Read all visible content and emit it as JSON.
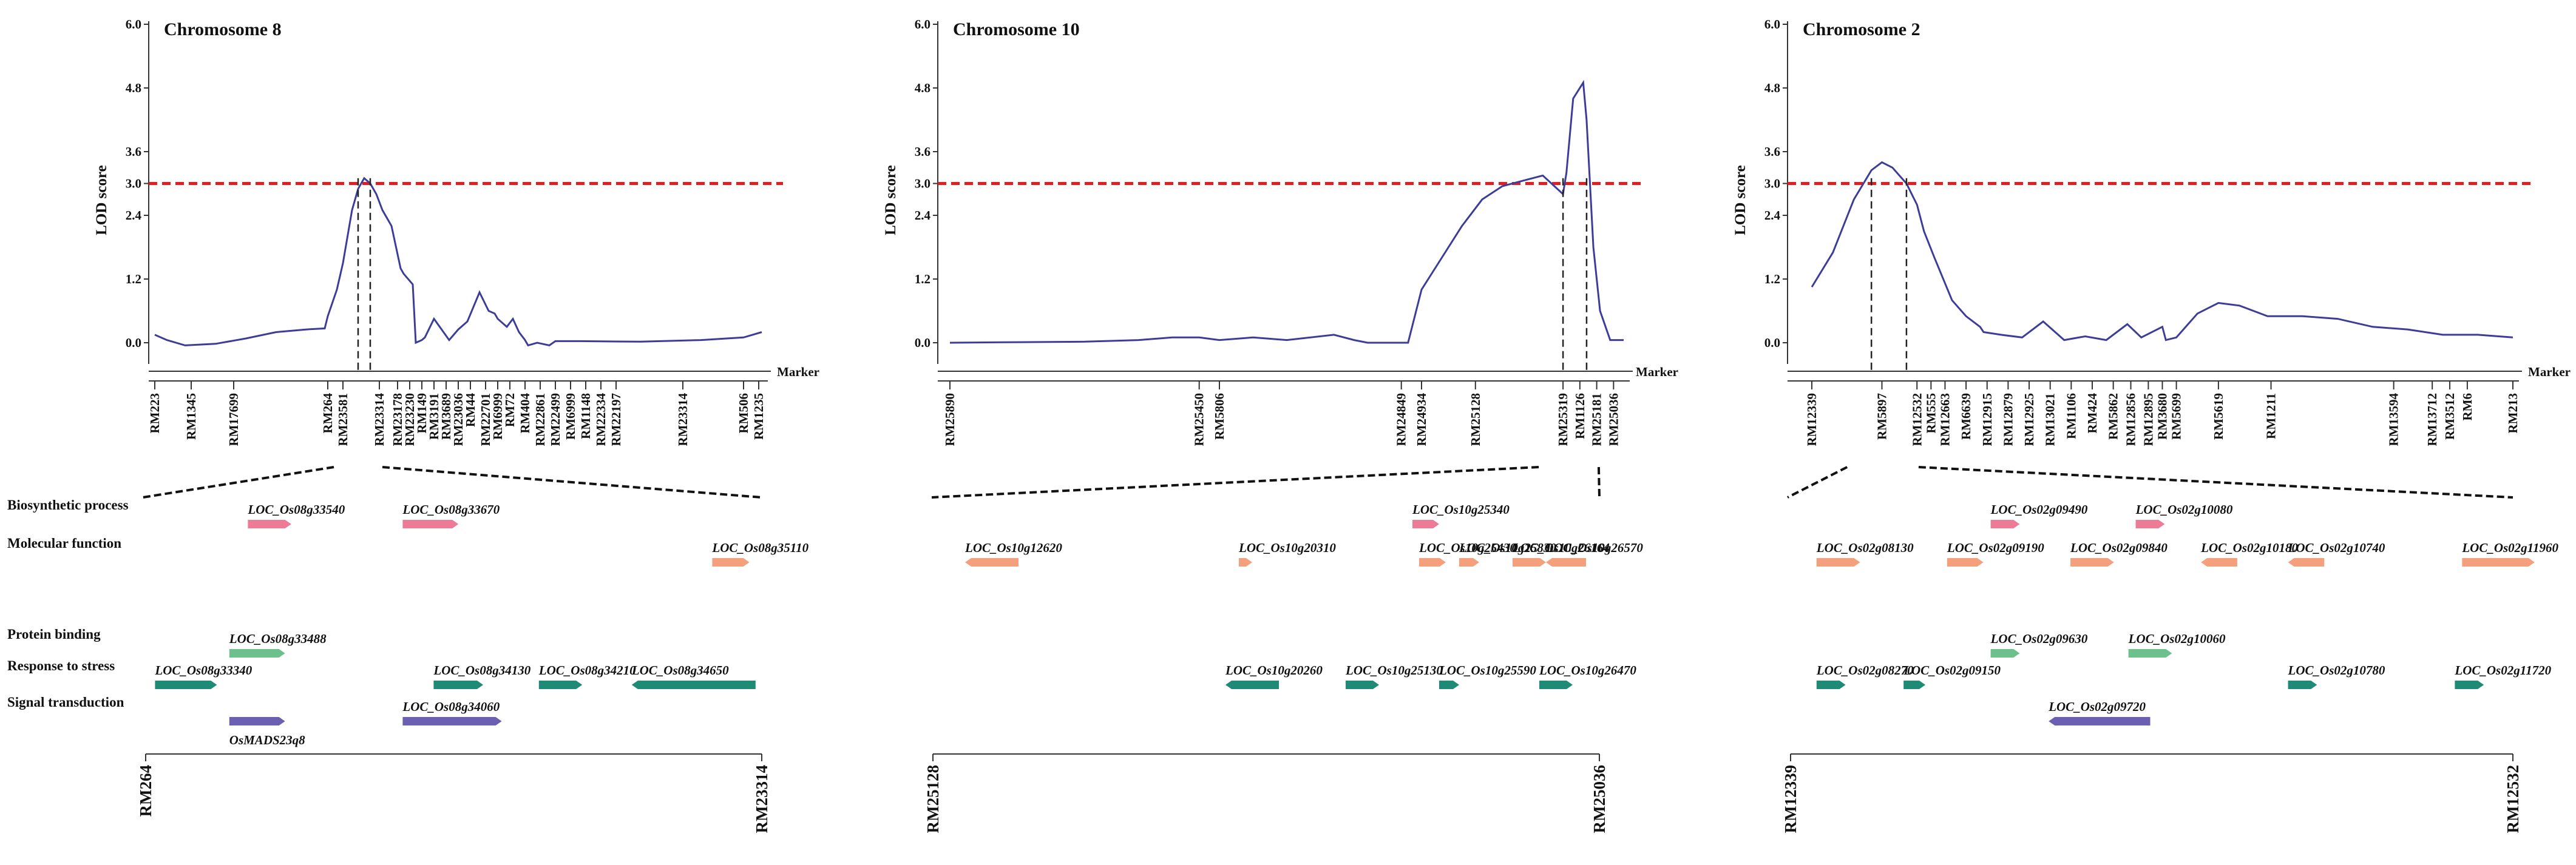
{
  "chart_data": [
    {
      "type": "line",
      "title": "Chromosome 8",
      "ylabel": "LOD score",
      "xlabel": "Marker",
      "yticks": [
        "0.0",
        "1.2",
        "2.4",
        "3.0",
        "3.6",
        "4.8",
        "6.0"
      ],
      "ylim": [
        0,
        6
      ],
      "threshold": 3.0,
      "x": [
        0,
        0.02,
        0.05,
        0.1,
        0.15,
        0.2,
        0.25,
        0.28,
        0.285,
        0.3,
        0.31,
        0.325,
        0.335,
        0.345,
        0.355,
        0.365,
        0.375,
        0.385,
        0.39,
        0.405,
        0.41,
        0.425,
        0.43,
        0.44,
        0.445,
        0.46,
        0.485,
        0.5,
        0.515,
        0.535,
        0.55,
        0.56,
        0.565,
        0.58,
        0.59,
        0.6,
        0.61,
        0.615,
        0.63,
        0.65,
        0.66,
        0.7,
        0.8,
        0.9,
        0.97,
        1.0
      ],
      "y": [
        0.15,
        0.05,
        -0.05,
        -0.02,
        0.08,
        0.2,
        0.25,
        0.27,
        0.5,
        1.0,
        1.5,
        2.5,
        2.9,
        3.1,
        3.0,
        2.8,
        2.5,
        2.3,
        2.2,
        1.4,
        1.3,
        1.1,
        0.0,
        0.05,
        0.1,
        0.45,
        0.05,
        0.25,
        0.4,
        0.95,
        0.6,
        0.55,
        0.45,
        0.3,
        0.45,
        0.2,
        0.05,
        -0.05,
        0.0,
        -0.05,
        0.03,
        0.03,
        0.02,
        0.05,
        0.1,
        0.2
      ],
      "qtl": [
        0.335,
        0.355
      ],
      "markers": [
        {
          "name": "RM223",
          "pos": 0.0
        },
        {
          "name": "RM1345",
          "pos": 0.06
        },
        {
          "name": "RM17699",
          "pos": 0.13
        },
        {
          "name": "RM264",
          "pos": 0.285
        },
        {
          "name": "RM23581",
          "pos": 0.31
        },
        {
          "name": "RM23314",
          "pos": 0.37
        },
        {
          "name": "RM23178",
          "pos": 0.4
        },
        {
          "name": "RM23230",
          "pos": 0.42
        },
        {
          "name": "RM149",
          "pos": 0.44
        },
        {
          "name": "RM3191",
          "pos": 0.46
        },
        {
          "name": "RM3689",
          "pos": 0.48
        },
        {
          "name": "RM23036",
          "pos": 0.5
        },
        {
          "name": "RM44",
          "pos": 0.52
        },
        {
          "name": "RM22701",
          "pos": 0.545
        },
        {
          "name": "RM6999",
          "pos": 0.565
        },
        {
          "name": "RM72",
          "pos": 0.585
        },
        {
          "name": "RM404",
          "pos": 0.61
        },
        {
          "name": "RM22861",
          "pos": 0.635
        },
        {
          "name": "RM22499",
          "pos": 0.66
        },
        {
          "name": "RM6999",
          "pos": 0.685
        },
        {
          "name": "RM1148",
          "pos": 0.71
        },
        {
          "name": "RM22334",
          "pos": 0.735
        },
        {
          "name": "RM22197",
          "pos": 0.76
        },
        {
          "name": "RM23314",
          "pos": 0.87
        },
        {
          "name": "RM506",
          "pos": 0.97
        },
        {
          "name": "RM1235",
          "pos": 0.995
        }
      ],
      "genes": [
        {
          "name": "LOC_Os08g33540",
          "cat": "Biosynthetic process",
          "pos": 0.17,
          "dir": 1,
          "size": 0.07
        },
        {
          "name": "LOC_Os08g33670",
          "cat": "Biosynthetic process",
          "pos": 0.42,
          "dir": 1,
          "size": 0.09
        },
        {
          "name": "LOC_Os08g35110",
          "cat": "Molecular function",
          "pos": 0.92,
          "dir": 1,
          "size": 0.06
        },
        {
          "name": "LOC_Os08g33488",
          "cat": "Protein binding",
          "pos": 0.14,
          "dir": 1,
          "size": 0.09
        },
        {
          "name": "LOC_Os08g33340",
          "cat": "Response to stress",
          "pos": 0.02,
          "dir": 1,
          "size": 0.1
        },
        {
          "name": "LOC_Os08g34130",
          "cat": "Response to stress",
          "pos": 0.47,
          "dir": 1,
          "size": 0.08
        },
        {
          "name": "LOC_Os08g34210",
          "cat": "Response to stress",
          "pos": 0.64,
          "dir": 1,
          "size": 0.07
        },
        {
          "name": "LOC_Os08g34650",
          "cat": "Response to stress",
          "pos": 0.79,
          "dir": -1,
          "size": 0.2
        },
        {
          "name": "LOC_Os08g34060",
          "cat": "Signal transduction",
          "pos": 0.42,
          "dir": 1,
          "size": 0.16
        },
        {
          "name": "OsMADS23q8",
          "cat": "Signal transduction",
          "pos": 0.14,
          "dir": 1,
          "size": 0.09
        }
      ],
      "interval": [
        "RM264",
        "RM23314"
      ]
    },
    {
      "type": "line",
      "title": "Chromosome 10",
      "ylabel": "LOD score",
      "xlabel": "Marker",
      "yticks": [
        "0.0",
        "1.2",
        "2.4",
        "3.0",
        "3.6",
        "4.8",
        "6.0"
      ],
      "ylim": [
        0,
        6
      ],
      "threshold": 3.0,
      "x": [
        0,
        0.1,
        0.2,
        0.28,
        0.33,
        0.37,
        0.4,
        0.45,
        0.5,
        0.57,
        0.6,
        0.62,
        0.68,
        0.7,
        0.72,
        0.76,
        0.79,
        0.82,
        0.85,
        0.88,
        0.91,
        0.915,
        0.925,
        0.94,
        0.945,
        0.955,
        0.965,
        0.98,
        1.0
      ],
      "y": [
        0.0,
        0.01,
        0.02,
        0.05,
        0.1,
        0.1,
        0.05,
        0.1,
        0.05,
        0.15,
        0.05,
        0.0,
        0.0,
        1.0,
        1.4,
        2.2,
        2.7,
        2.95,
        3.05,
        3.15,
        2.8,
        3.2,
        4.6,
        4.9,
        4.2,
        1.8,
        0.6,
        0.05,
        0.05
      ],
      "qtl": [
        0.91,
        0.945
      ],
      "markers": [
        {
          "name": "RM25890",
          "pos": 0.0
        },
        {
          "name": "RM25450",
          "pos": 0.37
        },
        {
          "name": "RM5806",
          "pos": 0.4
        },
        {
          "name": "RM24849",
          "pos": 0.67
        },
        {
          "name": "RM24934",
          "pos": 0.7
        },
        {
          "name": "RM25128",
          "pos": 0.78
        },
        {
          "name": "RM25319",
          "pos": 0.91
        },
        {
          "name": "RM1126",
          "pos": 0.935
        },
        {
          "name": "RM25181",
          "pos": 0.96
        },
        {
          "name": "RM25036",
          "pos": 0.985
        }
      ],
      "genes": [
        {
          "name": "LOC_Os10g25340",
          "cat": "Biosynthetic process",
          "pos": 0.72,
          "dir": 1,
          "size": 0.04
        },
        {
          "name": "LOC_Os10g12620",
          "cat": "Molecular function",
          "pos": 0.05,
          "dir": -1,
          "size": 0.08
        },
        {
          "name": "LOC_Os10g20310",
          "cat": "Molecular function",
          "pos": 0.46,
          "dir": 1,
          "size": 0.02
        },
        {
          "name": "LOC_Os10g25430",
          "cat": "Molecular function",
          "pos": 0.73,
          "dir": 1,
          "size": 0.04
        },
        {
          "name": "LOC_Os10g26164",
          "cat": "Molecular function",
          "pos": 0.87,
          "dir": 1,
          "size": 0.05
        },
        {
          "name": "LOC_Os10g25830",
          "cat": "Molecular function",
          "pos": 0.79,
          "dir": 1,
          "size": 0.03
        },
        {
          "name": "LOC_Os10g26570",
          "cat": "Molecular function",
          "pos": 0.92,
          "dir": -1,
          "size": 0.06
        },
        {
          "name": "LOC_Os10g20260",
          "cat": "Response to stress",
          "pos": 0.44,
          "dir": -1,
          "size": 0.08
        },
        {
          "name": "LOC_Os10g25130",
          "cat": "Response to stress",
          "pos": 0.62,
          "dir": 1,
          "size": 0.05
        },
        {
          "name": "LOC_Os10g25590",
          "cat": "Response to stress",
          "pos": 0.76,
          "dir": 1,
          "size": 0.03
        },
        {
          "name": "LOC_Os10g26470",
          "cat": "Response to stress",
          "pos": 0.91,
          "dir": 1,
          "size": 0.05
        }
      ],
      "interval": [
        "RM25128",
        "RM25036"
      ]
    },
    {
      "type": "line",
      "title": "Chromosome 2",
      "ylabel": "LOD score",
      "xlabel": "Marker",
      "yticks": [
        "0.0",
        "1.2",
        "2.4",
        "3.0",
        "3.6",
        "4.8",
        "6.0"
      ],
      "ylim": [
        0,
        6
      ],
      "threshold": 3.0,
      "x": [
        0,
        0.03,
        0.06,
        0.085,
        0.1,
        0.115,
        0.135,
        0.15,
        0.16,
        0.175,
        0.2,
        0.22,
        0.24,
        0.245,
        0.27,
        0.3,
        0.33,
        0.36,
        0.39,
        0.42,
        0.45,
        0.47,
        0.5,
        0.505,
        0.52,
        0.55,
        0.58,
        0.61,
        0.65,
        0.7,
        0.75,
        0.8,
        0.85,
        0.9,
        0.95,
        1.0
      ],
      "y": [
        1.05,
        1.7,
        2.7,
        3.25,
        3.4,
        3.3,
        3.0,
        2.6,
        2.1,
        1.6,
        0.8,
        0.5,
        0.3,
        0.2,
        0.15,
        0.1,
        0.4,
        0.05,
        0.12,
        0.05,
        0.35,
        0.1,
        0.3,
        0.05,
        0.1,
        0.55,
        0.75,
        0.7,
        0.5,
        0.5,
        0.45,
        0.3,
        0.25,
        0.15,
        0.15,
        0.1
      ],
      "qtl": [
        0.085,
        0.135
      ],
      "markers": [
        {
          "name": "RM12339",
          "pos": 0.0
        },
        {
          "name": "RM5897",
          "pos": 0.1
        },
        {
          "name": "RM12532",
          "pos": 0.15
        },
        {
          "name": "RM555",
          "pos": 0.17
        },
        {
          "name": "RM12663",
          "pos": 0.19
        },
        {
          "name": "RM6639",
          "pos": 0.22
        },
        {
          "name": "RM12915",
          "pos": 0.25
        },
        {
          "name": "RM12879",
          "pos": 0.28
        },
        {
          "name": "RM12925",
          "pos": 0.31
        },
        {
          "name": "RM13021",
          "pos": 0.34
        },
        {
          "name": "RM1106",
          "pos": 0.37
        },
        {
          "name": "RM424",
          "pos": 0.4
        },
        {
          "name": "RM5862",
          "pos": 0.43
        },
        {
          "name": "RM12856",
          "pos": 0.455
        },
        {
          "name": "RM12895",
          "pos": 0.48
        },
        {
          "name": "RM3680",
          "pos": 0.5
        },
        {
          "name": "RM5699",
          "pos": 0.52
        },
        {
          "name": "RM5619",
          "pos": 0.58
        },
        {
          "name": "RM1211",
          "pos": 0.655
        },
        {
          "name": "RM13594",
          "pos": 0.83
        },
        {
          "name": "RM13712",
          "pos": 0.885
        },
        {
          "name": "RM3512",
          "pos": 0.91
        },
        {
          "name": "RM6",
          "pos": 0.935
        },
        {
          "name": "RM213",
          "pos": 1.0
        }
      ],
      "genes": [
        {
          "name": "LOC_Os02g09490",
          "cat": "Biosynthetic process",
          "pos": 0.28,
          "dir": 1,
          "size": 0.04
        },
        {
          "name": "LOC_Os02g10080",
          "cat": "Biosynthetic process",
          "pos": 0.48,
          "dir": 1,
          "size": 0.04
        },
        {
          "name": "LOC_Os02g08130",
          "cat": "Molecular function",
          "pos": 0.04,
          "dir": 1,
          "size": 0.06
        },
        {
          "name": "LOC_Os02g09190",
          "cat": "Molecular function",
          "pos": 0.22,
          "dir": 1,
          "size": 0.05
        },
        {
          "name": "LOC_Os02g09840",
          "cat": "Molecular function",
          "pos": 0.39,
          "dir": 1,
          "size": 0.06
        },
        {
          "name": "LOC_Os02g10180",
          "cat": "Molecular function",
          "pos": 0.57,
          "dir": -1,
          "size": 0.05
        },
        {
          "name": "LOC_Os02g10740",
          "cat": "Molecular function",
          "pos": 0.69,
          "dir": -1,
          "size": 0.05
        },
        {
          "name": "LOC_Os02g11960",
          "cat": "Molecular function",
          "pos": 0.93,
          "dir": 1,
          "size": 0.1
        },
        {
          "name": "LOC_Os02g09630",
          "cat": "Protein binding",
          "pos": 0.28,
          "dir": 1,
          "size": 0.04
        },
        {
          "name": "LOC_Os02g10060",
          "cat": "Protein binding",
          "pos": 0.47,
          "dir": 1,
          "size": 0.06
        },
        {
          "name": "LOC_Os02g08270",
          "cat": "Response to stress",
          "pos": 0.04,
          "dir": 1,
          "size": 0.04
        },
        {
          "name": "LOC_Os02g09150",
          "cat": "Response to stress",
          "pos": 0.16,
          "dir": 1,
          "size": 0.03
        },
        {
          "name": "LOC_Os02g10780",
          "cat": "Response to stress",
          "pos": 0.69,
          "dir": 1,
          "size": 0.04
        },
        {
          "name": "LOC_Os02g11720",
          "cat": "Response to stress",
          "pos": 0.92,
          "dir": 1,
          "size": 0.04
        },
        {
          "name": "LOC_Os02g09720",
          "cat": "Signal transduction",
          "pos": 0.36,
          "dir": -1,
          "size": 0.14
        }
      ],
      "interval": [
        "RM12339",
        "RM12532"
      ]
    }
  ],
  "categories": [
    {
      "label": "Biosynthetic process",
      "color": "#ee7b95"
    },
    {
      "label": "Molecular function",
      "color": "#f4a07c"
    },
    {
      "label": "Protein binding",
      "color": "#6cc08b"
    },
    {
      "label": "Response to stress",
      "color": "#1f8a76"
    },
    {
      "label": "Signal transduction",
      "color": "#6a5fb0"
    }
  ],
  "colors": {
    "line": "#3d3d99",
    "threshold": "#e02020",
    "axis": "#333333"
  }
}
